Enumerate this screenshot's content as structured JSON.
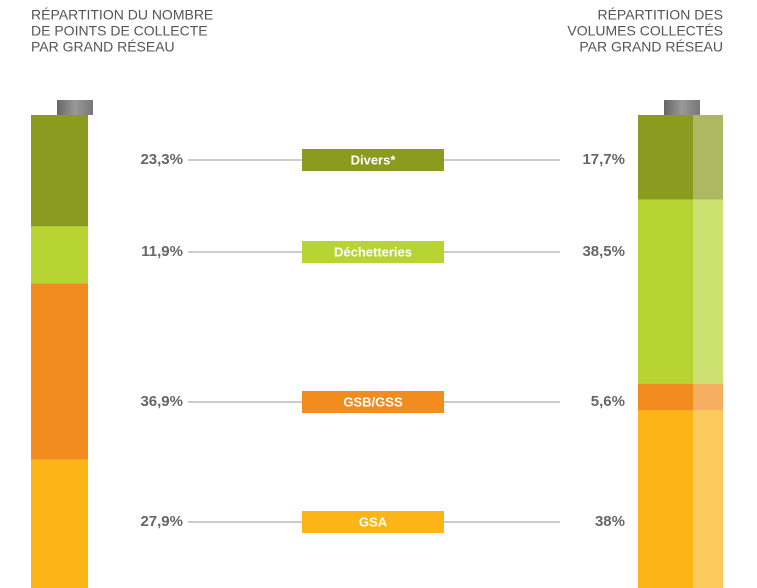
{
  "chart_data": {
    "type": "battery",
    "categories": [
      "Divers*",
      "Déchetteries",
      "GSB/GSS",
      "GSA"
    ],
    "colors": [
      "#8a9b1f",
      "#b8d433",
      "#f28c1e",
      "#fbb516"
    ],
    "series": [
      {
        "title": [
          "RÉPARTITION DU NOMBRE",
          "DE POINTS DE COLLECTE",
          "PAR GRAND RÉSEAU"
        ],
        "values": [
          23.3,
          11.9,
          36.9,
          27.9
        ],
        "value_labels": [
          "23,3%",
          "11,9%",
          "36,9%",
          "27,9%"
        ]
      },
      {
        "title": [
          "RÉPARTITION DES",
          "VOLUMES COLLECTÉS",
          "PAR GRAND RÉSEAU"
        ],
        "values": [
          17.7,
          38.5,
          5.6,
          38
        ],
        "value_labels": [
          "17,7%",
          "38,5%",
          "5,6%",
          "38%"
        ]
      }
    ]
  }
}
